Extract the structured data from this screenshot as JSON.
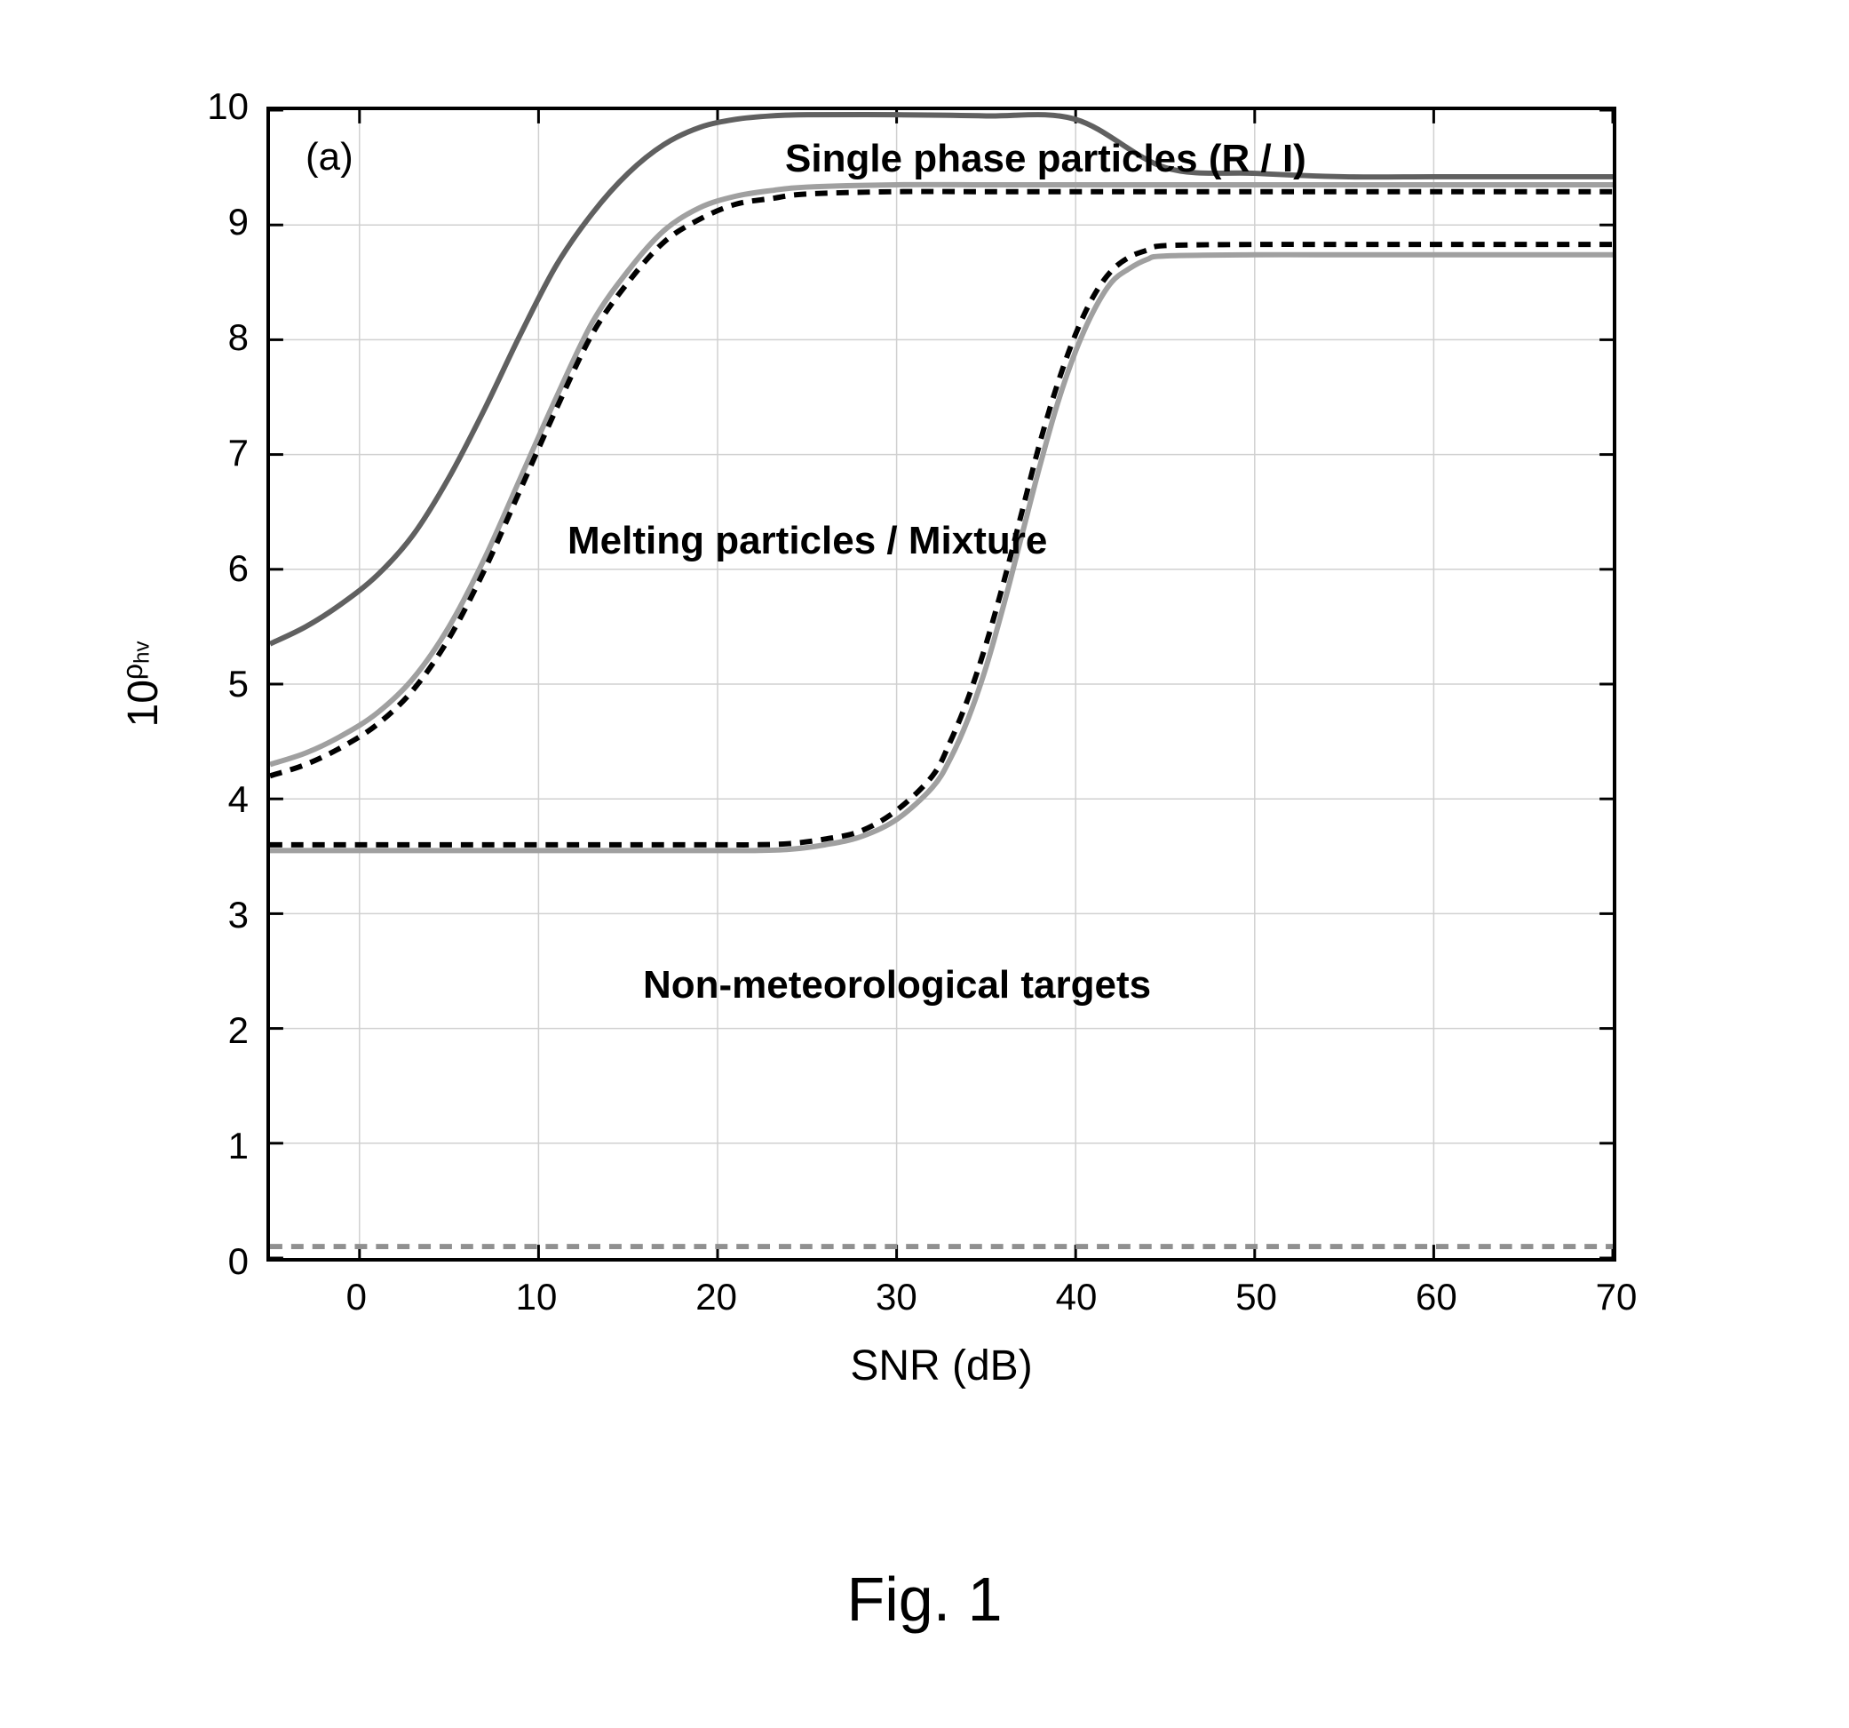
{
  "figure_caption": "Fig. 1",
  "panel_label": "(a)",
  "xaxis": {
    "label": "SNR (dB)",
    "min": -5,
    "max": 70,
    "ticks": [
      0,
      10,
      20,
      30,
      40,
      50,
      60,
      70
    ],
    "tick_labels": [
      "0",
      "10",
      "20",
      "30",
      "40",
      "50",
      "60",
      "70"
    ]
  },
  "yaxis": {
    "label_prefix": "10",
    "label_exponent": "ρ",
    "label_exponent_sub": "hv",
    "min": 0,
    "max": 10,
    "ticks": [
      0,
      1,
      2,
      3,
      4,
      5,
      6,
      7,
      8,
      9,
      10
    ],
    "tick_labels": [
      "0",
      "1",
      "2",
      "3",
      "4",
      "5",
      "6",
      "7",
      "8",
      "9",
      "10"
    ]
  },
  "grid_color": "#d0d0d0",
  "bg_color": "#ffffff",
  "border_color": "#000000",
  "tick_len": 15,
  "region_labels": {
    "single_phase": "Single phase particles (R / I)",
    "melting": "Melting particles / Mixture",
    "nonmet": "Non-meteorological targets"
  },
  "curves": [
    {
      "name": "upper-solid",
      "color": "#606060",
      "width": 6,
      "dash": "none",
      "points": [
        [
          -5,
          5.35
        ],
        [
          -3,
          5.5
        ],
        [
          -1,
          5.7
        ],
        [
          1,
          5.95
        ],
        [
          3,
          6.3
        ],
        [
          5,
          6.8
        ],
        [
          7,
          7.4
        ],
        [
          9,
          8.05
        ],
        [
          11,
          8.65
        ],
        [
          13,
          9.1
        ],
        [
          15,
          9.45
        ],
        [
          17,
          9.7
        ],
        [
          19,
          9.85
        ],
        [
          21,
          9.92
        ],
        [
          23,
          9.95
        ],
        [
          25,
          9.96
        ],
        [
          30,
          9.96
        ],
        [
          35,
          9.95
        ],
        [
          40,
          9.92
        ],
        [
          45,
          9.5
        ],
        [
          50,
          9.45
        ],
        [
          55,
          9.42
        ],
        [
          60,
          9.42
        ],
        [
          65,
          9.42
        ],
        [
          70,
          9.42
        ]
      ]
    },
    {
      "name": "mid-solid",
      "color": "#a0a0a0",
      "width": 6,
      "dash": "none",
      "points": [
        [
          -5,
          4.3
        ],
        [
          -3,
          4.4
        ],
        [
          -1,
          4.55
        ],
        [
          1,
          4.75
        ],
        [
          3,
          5.05
        ],
        [
          5,
          5.5
        ],
        [
          7,
          6.1
        ],
        [
          9,
          6.8
        ],
        [
          11,
          7.5
        ],
        [
          13,
          8.15
        ],
        [
          15,
          8.6
        ],
        [
          17,
          8.95
        ],
        [
          19,
          9.15
        ],
        [
          21,
          9.25
        ],
        [
          23,
          9.3
        ],
        [
          25,
          9.33
        ],
        [
          30,
          9.35
        ],
        [
          35,
          9.35
        ],
        [
          40,
          9.35
        ],
        [
          45,
          9.35
        ],
        [
          50,
          9.35
        ],
        [
          55,
          9.35
        ],
        [
          60,
          9.35
        ],
        [
          65,
          9.35
        ],
        [
          70,
          9.35
        ]
      ]
    },
    {
      "name": "mid-dashed",
      "color": "#000000",
      "width": 6,
      "dash": "14 10",
      "points": [
        [
          -5,
          4.2
        ],
        [
          -3,
          4.3
        ],
        [
          -1,
          4.45
        ],
        [
          1,
          4.65
        ],
        [
          3,
          4.95
        ],
        [
          5,
          5.4
        ],
        [
          7,
          6.0
        ],
        [
          9,
          6.7
        ],
        [
          11,
          7.4
        ],
        [
          13,
          8.05
        ],
        [
          15,
          8.5
        ],
        [
          17,
          8.85
        ],
        [
          19,
          9.05
        ],
        [
          21,
          9.18
        ],
        [
          23,
          9.23
        ],
        [
          25,
          9.27
        ],
        [
          30,
          9.29
        ],
        [
          35,
          9.29
        ],
        [
          40,
          9.29
        ],
        [
          45,
          9.29
        ],
        [
          50,
          9.29
        ],
        [
          55,
          9.29
        ],
        [
          60,
          9.29
        ],
        [
          65,
          9.29
        ],
        [
          70,
          9.29
        ]
      ]
    },
    {
      "name": "low-solid",
      "color": "#a0a0a0",
      "width": 6,
      "dash": "none",
      "points": [
        [
          -5,
          3.55
        ],
        [
          0,
          3.55
        ],
        [
          5,
          3.55
        ],
        [
          10,
          3.55
        ],
        [
          15,
          3.55
        ],
        [
          20,
          3.55
        ],
        [
          22,
          3.55
        ],
        [
          24,
          3.56
        ],
        [
          26,
          3.6
        ],
        [
          28,
          3.67
        ],
        [
          30,
          3.82
        ],
        [
          32,
          4.1
        ],
        [
          33,
          4.35
        ],
        [
          34,
          4.7
        ],
        [
          35,
          5.15
        ],
        [
          36,
          5.7
        ],
        [
          37,
          6.3
        ],
        [
          38,
          6.9
        ],
        [
          39,
          7.45
        ],
        [
          40,
          7.9
        ],
        [
          41,
          8.25
        ],
        [
          42,
          8.5
        ],
        [
          43,
          8.62
        ],
        [
          44,
          8.7
        ],
        [
          45,
          8.73
        ],
        [
          50,
          8.74
        ],
        [
          55,
          8.74
        ],
        [
          60,
          8.74
        ],
        [
          65,
          8.74
        ],
        [
          70,
          8.74
        ]
      ]
    },
    {
      "name": "low-dashed",
      "color": "#000000",
      "width": 6,
      "dash": "14 10",
      "points": [
        [
          -5,
          3.6
        ],
        [
          0,
          3.6
        ],
        [
          5,
          3.6
        ],
        [
          10,
          3.6
        ],
        [
          15,
          3.6
        ],
        [
          20,
          3.6
        ],
        [
          22,
          3.6
        ],
        [
          24,
          3.61
        ],
        [
          26,
          3.65
        ],
        [
          28,
          3.72
        ],
        [
          30,
          3.9
        ],
        [
          32,
          4.2
        ],
        [
          33,
          4.5
        ],
        [
          34,
          4.88
        ],
        [
          35,
          5.35
        ],
        [
          36,
          5.9
        ],
        [
          37,
          6.5
        ],
        [
          38,
          7.1
        ],
        [
          39,
          7.62
        ],
        [
          40,
          8.05
        ],
        [
          41,
          8.38
        ],
        [
          42,
          8.6
        ],
        [
          43,
          8.72
        ],
        [
          44,
          8.78
        ],
        [
          45,
          8.82
        ],
        [
          50,
          8.83
        ],
        [
          55,
          8.83
        ],
        [
          60,
          8.83
        ],
        [
          65,
          8.83
        ],
        [
          70,
          8.83
        ]
      ]
    },
    {
      "name": "floor-dashed",
      "color": "#909090",
      "width": 6,
      "dash": "14 10",
      "points": [
        [
          -5,
          0.1
        ],
        [
          70,
          0.1
        ]
      ]
    }
  ]
}
